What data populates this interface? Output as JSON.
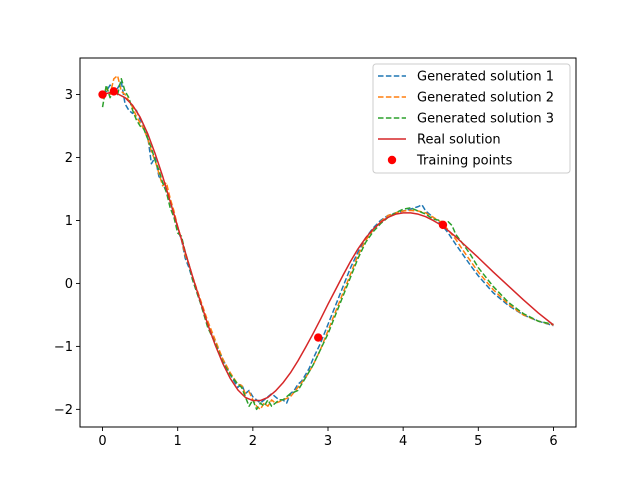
{
  "chart_data": {
    "type": "line",
    "xlim": [
      -0.3,
      6.3
    ],
    "ylim": [
      -2.28,
      3.58
    ],
    "xticks": [
      0,
      1,
      2,
      3,
      4,
      5,
      6
    ],
    "yticks": [
      -2,
      -1,
      0,
      1,
      2,
      3
    ],
    "grid": false,
    "legend_position": "top-right",
    "series": [
      {
        "name": "Generated solution 1",
        "style": "dashed",
        "color": "#1f77b4",
        "x": [
          0,
          0.05,
          0.1,
          0.15,
          0.2,
          0.25,
          0.3,
          0.35,
          0.4,
          0.45,
          0.5,
          0.55,
          0.6,
          0.65,
          0.7,
          0.75,
          0.8,
          0.85,
          0.9,
          0.95,
          1.0,
          1.05,
          1.1,
          1.15,
          1.2,
          1.3,
          1.4,
          1.5,
          1.6,
          1.7,
          1.8,
          1.85,
          1.9,
          1.95,
          2.0,
          2.05,
          2.1,
          2.15,
          2.2,
          2.25,
          2.3,
          2.35,
          2.4,
          2.45,
          2.5,
          2.55,
          2.6,
          2.65,
          2.7,
          2.75,
          2.8,
          2.9,
          3.0,
          3.1,
          3.2,
          3.3,
          3.4,
          3.5,
          3.6,
          3.7,
          3.8,
          3.9,
          4.0,
          4.1,
          4.2,
          4.25,
          4.3,
          4.35,
          4.4,
          4.5,
          4.6,
          4.7,
          4.8,
          4.9,
          5.0,
          5.2,
          5.4,
          5.6,
          5.8,
          6.0
        ],
        "y": [
          3.0,
          3.05,
          3.15,
          3.05,
          3.1,
          3.2,
          2.85,
          2.75,
          2.7,
          2.75,
          2.6,
          2.5,
          2.35,
          1.9,
          2.0,
          1.7,
          1.6,
          1.45,
          1.3,
          1.1,
          0.85,
          0.7,
          0.4,
          0.25,
          0.05,
          -0.3,
          -0.65,
          -0.95,
          -1.2,
          -1.45,
          -1.65,
          -1.6,
          -1.75,
          -1.7,
          -1.8,
          -1.85,
          -1.9,
          -1.85,
          -1.8,
          -1.75,
          -1.8,
          -1.85,
          -1.85,
          -1.9,
          -1.75,
          -1.7,
          -1.6,
          -1.55,
          -1.45,
          -1.35,
          -1.2,
          -0.95,
          -0.65,
          -0.35,
          -0.05,
          0.25,
          0.5,
          0.72,
          0.88,
          1.0,
          1.08,
          1.12,
          1.15,
          1.18,
          1.22,
          1.25,
          1.15,
          1.1,
          1.05,
          0.95,
          0.8,
          0.62,
          0.45,
          0.28,
          0.12,
          -0.15,
          -0.35,
          -0.5,
          -0.6,
          -0.67
        ]
      },
      {
        "name": "Generated solution 2",
        "style": "dashed",
        "color": "#ff7f0e",
        "x": [
          0,
          0.05,
          0.1,
          0.15,
          0.2,
          0.25,
          0.3,
          0.35,
          0.4,
          0.45,
          0.5,
          0.55,
          0.6,
          0.65,
          0.7,
          0.75,
          0.8,
          0.85,
          0.9,
          0.95,
          1.0,
          1.05,
          1.1,
          1.15,
          1.2,
          1.3,
          1.4,
          1.5,
          1.6,
          1.7,
          1.8,
          1.85,
          1.9,
          1.95,
          2.0,
          2.05,
          2.1,
          2.15,
          2.2,
          2.25,
          2.3,
          2.35,
          2.4,
          2.5,
          2.6,
          2.7,
          2.8,
          2.9,
          3.0,
          3.1,
          3.2,
          3.3,
          3.4,
          3.5,
          3.6,
          3.7,
          3.8,
          3.9,
          4.0,
          4.1,
          4.2,
          4.3,
          4.4,
          4.5,
          4.6,
          4.7,
          4.8,
          4.9,
          5.0,
          5.2,
          5.4,
          5.6,
          5.8,
          6.0
        ],
        "y": [
          2.95,
          3.1,
          3.0,
          3.25,
          3.3,
          3.05,
          3.0,
          2.9,
          2.8,
          2.65,
          2.55,
          2.45,
          2.3,
          2.1,
          1.95,
          1.75,
          1.55,
          1.6,
          1.35,
          1.15,
          0.9,
          0.7,
          0.45,
          0.3,
          0.1,
          -0.25,
          -0.6,
          -0.9,
          -1.2,
          -1.42,
          -1.6,
          -1.62,
          -1.75,
          -1.72,
          -1.85,
          -1.95,
          -2.0,
          -1.9,
          -1.95,
          -1.85,
          -1.9,
          -1.88,
          -1.85,
          -1.8,
          -1.65,
          -1.5,
          -1.3,
          -1.05,
          -0.75,
          -0.45,
          -0.15,
          0.15,
          0.45,
          0.68,
          0.85,
          0.98,
          1.08,
          1.12,
          1.15,
          1.16,
          1.15,
          1.12,
          1.05,
          0.98,
          0.85,
          0.7,
          0.52,
          0.35,
          0.18,
          -0.1,
          -0.33,
          -0.5,
          -0.6,
          -0.66
        ]
      },
      {
        "name": "Generated solution 3",
        "style": "dashed",
        "color": "#2ca02c",
        "x": [
          0,
          0.05,
          0.1,
          0.15,
          0.2,
          0.25,
          0.3,
          0.35,
          0.4,
          0.45,
          0.5,
          0.55,
          0.6,
          0.65,
          0.7,
          0.75,
          0.8,
          0.85,
          0.9,
          0.95,
          1.0,
          1.05,
          1.1,
          1.15,
          1.2,
          1.3,
          1.4,
          1.5,
          1.6,
          1.7,
          1.8,
          1.85,
          1.9,
          1.95,
          2.0,
          2.05,
          2.1,
          2.15,
          2.2,
          2.25,
          2.3,
          2.35,
          2.4,
          2.5,
          2.6,
          2.7,
          2.8,
          2.9,
          3.0,
          3.1,
          3.2,
          3.3,
          3.4,
          3.5,
          3.6,
          3.7,
          3.8,
          3.9,
          4.0,
          4.1,
          4.2,
          4.3,
          4.4,
          4.5,
          4.55,
          4.6,
          4.65,
          4.7,
          4.8,
          4.9,
          5.0,
          5.2,
          5.4,
          5.6,
          5.8,
          6.0
        ],
        "y": [
          2.8,
          3.15,
          2.95,
          3.05,
          3.0,
          3.25,
          3.05,
          2.95,
          2.75,
          2.6,
          2.5,
          2.45,
          2.3,
          2.15,
          1.95,
          1.8,
          1.6,
          1.45,
          1.2,
          1.05,
          0.8,
          0.75,
          0.5,
          0.3,
          0.05,
          -0.3,
          -0.7,
          -0.95,
          -1.25,
          -1.45,
          -1.6,
          -1.65,
          -1.8,
          -1.95,
          -1.85,
          -2.0,
          -1.9,
          -1.95,
          -1.85,
          -1.95,
          -1.9,
          -1.85,
          -1.85,
          -1.75,
          -1.7,
          -1.5,
          -1.3,
          -1.05,
          -0.8,
          -0.5,
          -0.2,
          0.1,
          0.4,
          0.65,
          0.82,
          0.95,
          1.05,
          1.12,
          1.18,
          1.2,
          1.15,
          1.1,
          1.02,
          1.0,
          0.95,
          0.98,
          0.92,
          0.78,
          0.62,
          0.45,
          0.25,
          -0.05,
          -0.3,
          -0.48,
          -0.6,
          -0.65
        ]
      },
      {
        "name": "Real solution",
        "style": "solid",
        "color": "#d62728",
        "x": [
          0,
          0.1,
          0.2,
          0.3,
          0.4,
          0.5,
          0.6,
          0.7,
          0.8,
          0.9,
          1.0,
          1.1,
          1.2,
          1.3,
          1.4,
          1.5,
          1.6,
          1.7,
          1.8,
          1.9,
          2.0,
          2.1,
          2.2,
          2.3,
          2.4,
          2.5,
          2.6,
          2.7,
          2.8,
          2.9,
          3.0,
          3.1,
          3.2,
          3.3,
          3.4,
          3.5,
          3.6,
          3.7,
          3.8,
          3.9,
          4.0,
          4.1,
          4.2,
          4.3,
          4.4,
          4.5,
          4.6,
          4.7,
          4.8,
          4.9,
          5.0,
          5.2,
          5.4,
          5.6,
          5.8,
          6.0
        ],
        "y": [
          3.0,
          3.03,
          3.01,
          2.95,
          2.83,
          2.64,
          2.38,
          2.06,
          1.7,
          1.3,
          0.9,
          0.5,
          0.1,
          -0.28,
          -0.65,
          -0.98,
          -1.27,
          -1.51,
          -1.69,
          -1.81,
          -1.86,
          -1.86,
          -1.81,
          -1.71,
          -1.58,
          -1.42,
          -1.23,
          -1.02,
          -0.8,
          -0.57,
          -0.33,
          -0.1,
          0.13,
          0.35,
          0.55,
          0.72,
          0.86,
          0.97,
          1.05,
          1.1,
          1.12,
          1.12,
          1.1,
          1.06,
          1.0,
          0.93,
          0.84,
          0.74,
          0.63,
          0.52,
          0.41,
          0.18,
          -0.04,
          -0.26,
          -0.47,
          -0.66
        ]
      }
    ],
    "scatter": {
      "name": "Training points",
      "color": "#ff0000",
      "x": [
        0,
        0.15,
        2.87,
        4.53
      ],
      "y": [
        3.0,
        3.05,
        -0.86,
        0.93
      ]
    }
  }
}
